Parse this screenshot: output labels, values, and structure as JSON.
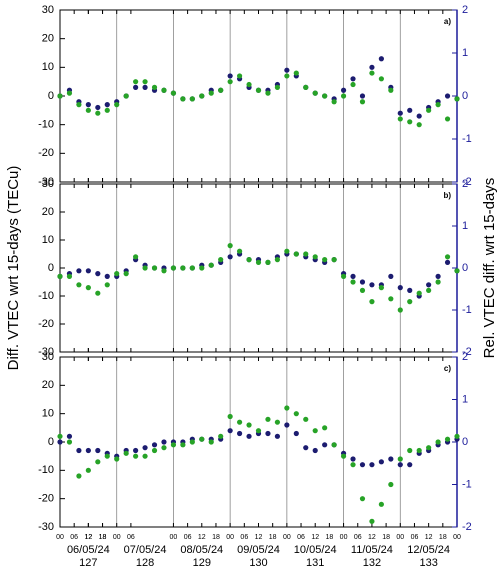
{
  "chart_data": [
    {
      "type": "scatter",
      "panel_label": "a)",
      "ylim": [
        -30,
        30
      ],
      "yticks": [
        -30,
        -20,
        -10,
        0,
        10,
        20,
        30
      ],
      "y2lim": [
        -2,
        2
      ],
      "y2ticks": [
        -2,
        -1,
        0,
        1,
        2
      ],
      "series": [
        {
          "color": "#1c1c70",
          "values": [
            0,
            2,
            -2,
            -3,
            -4,
            -3,
            -2,
            0,
            3,
            3,
            2,
            2,
            1,
            -1,
            -1,
            0,
            2,
            2,
            7,
            6,
            3,
            2,
            2,
            4,
            9,
            7,
            3,
            1,
            0,
            -1,
            2,
            6,
            0,
            10,
            13,
            3,
            -6,
            -5,
            -7,
            -4,
            -2,
            0,
            -1
          ]
        },
        {
          "color": "#27a327",
          "values": [
            0,
            1,
            -3,
            -5,
            -6,
            -5,
            -3,
            0,
            5,
            5,
            3,
            2,
            1,
            -1,
            -1,
            0,
            1,
            2,
            5,
            7,
            4,
            2,
            1,
            3,
            7,
            8,
            3,
            1,
            0,
            -2,
            0,
            4,
            -2,
            8,
            6,
            2,
            -8,
            -9,
            -10,
            -5,
            -3,
            -8,
            -1
          ]
        }
      ]
    },
    {
      "type": "scatter",
      "panel_label": "b)",
      "ylim": [
        -30,
        30
      ],
      "yticks": [
        -30,
        -20,
        -10,
        0,
        10,
        20,
        30
      ],
      "y2lim": [
        -2,
        2
      ],
      "y2ticks": [
        -2,
        -1,
        0,
        1,
        2
      ],
      "series": [
        {
          "color": "#1c1c70",
          "values": [
            -3,
            -2,
            -1,
            -1,
            -2,
            -3,
            -3,
            -1,
            3,
            1,
            0,
            0,
            0,
            0,
            0,
            1,
            1,
            2,
            4,
            5,
            3,
            3,
            2,
            4,
            5,
            5,
            4,
            3,
            2,
            3,
            -2,
            -3,
            -5,
            -6,
            -6,
            -3,
            -7,
            -8,
            -10,
            -6,
            -3,
            2,
            -1
          ]
        },
        {
          "color": "#27a327",
          "values": [
            -3,
            -3,
            -6,
            -7,
            -9,
            -6,
            -2,
            -2,
            4,
            0,
            0,
            -1,
            0,
            0,
            0,
            0,
            1,
            3,
            8,
            6,
            3,
            2,
            2,
            3,
            6,
            5,
            5,
            4,
            3,
            3,
            -3,
            -5,
            -8,
            -12,
            -7,
            -11,
            -15,
            -12,
            -9,
            -8,
            -5,
            4,
            -1
          ]
        }
      ]
    },
    {
      "type": "scatter",
      "panel_label": "c)",
      "ylim": [
        -30,
        30
      ],
      "yticks": [
        -30,
        -20,
        -10,
        0,
        10,
        20,
        30
      ],
      "y2lim": [
        -2,
        2
      ],
      "y2ticks": [
        -2,
        -1,
        0,
        1,
        2
      ],
      "xlim": [
        0,
        168
      ],
      "x": [
        0,
        4,
        8,
        12,
        16,
        20,
        24,
        28,
        32,
        36,
        40,
        44,
        48,
        52,
        56,
        60,
        64,
        68,
        72,
        76,
        80,
        84,
        88,
        92,
        96,
        100,
        104,
        108,
        112,
        116,
        120,
        124,
        128,
        132,
        136,
        140,
        144,
        148,
        152,
        156,
        160,
        164,
        168
      ],
      "xticks": [
        {
          "value": 0,
          "label": "00"
        },
        {
          "value": 6,
          "label": "06"
        },
        12,
        18,
        {
          "value": 24,
          "label": "00"
        },
        {
          "value": 30,
          "label": "06"
        },
        12,
        18,
        {
          "value": 48,
          "label": "00"
        },
        {
          "value": 54,
          "label": "06"
        },
        {
          "value": 60,
          "label": "12"
        },
        {
          "value": 66,
          "label": "18"
        },
        {
          "value": 72,
          "label": "00"
        },
        {
          "value": 78,
          "label": "06"
        },
        {
          "value": 84,
          "label": "12"
        },
        {
          "value": 90,
          "label": "18"
        },
        {
          "value": 96,
          "label": "00"
        },
        {
          "value": 102,
          "label": "06"
        },
        {
          "value": 108,
          "label": "12"
        },
        {
          "value": 114,
          "label": "18"
        },
        {
          "value": 120,
          "label": "00"
        },
        {
          "value": 126,
          "label": "06"
        },
        {
          "value": 132,
          "label": "12"
        },
        {
          "value": 138,
          "label": "18"
        },
        {
          "value": 144,
          "label": "00"
        },
        {
          "value": 150,
          "label": "06"
        },
        {
          "value": 156,
          "label": "12"
        },
        {
          "value": 162,
          "label": "18"
        },
        {
          "value": 168,
          "label": "00"
        }
      ],
      "dates": [
        "06/05/24",
        "07/05/24",
        "08/05/24",
        "09/05/24",
        "10/05/24",
        "11/05/24",
        "12/05/24"
      ],
      "doy": [
        "127",
        "128",
        "129",
        "130",
        "131",
        "132",
        "133"
      ],
      "ylabel": "Diff. VTEC wrt 15-days (TECu)",
      "y2label": "Rel. VTEC diff. wrt 15-days",
      "series": [
        {
          "color": "#1c1c70",
          "values": [
            0,
            2,
            -3,
            -3,
            -3,
            -4,
            -5,
            -3,
            -3,
            -2,
            -1,
            0,
            0,
            0,
            1,
            1,
            1,
            1,
            4,
            3,
            2,
            3,
            3,
            2,
            6,
            3,
            -2,
            -3,
            -1,
            -1,
            -4,
            -6,
            -8,
            -8,
            -7,
            -6,
            -8,
            -8,
            -4,
            -3,
            -1,
            0,
            1
          ]
        },
        {
          "color": "#27a327",
          "values": [
            2,
            0,
            -12,
            -10,
            -7,
            -5,
            -6,
            -4,
            -5,
            -5,
            -3,
            -2,
            -1,
            -1,
            0,
            1,
            0,
            2,
            9,
            7,
            6,
            4,
            8,
            7,
            12,
            10,
            8,
            4,
            5,
            -1,
            -5,
            -8,
            -20,
            -28,
            -22,
            -15,
            -6,
            -3,
            -3,
            -2,
            0,
            1,
            2
          ]
        }
      ]
    }
  ]
}
